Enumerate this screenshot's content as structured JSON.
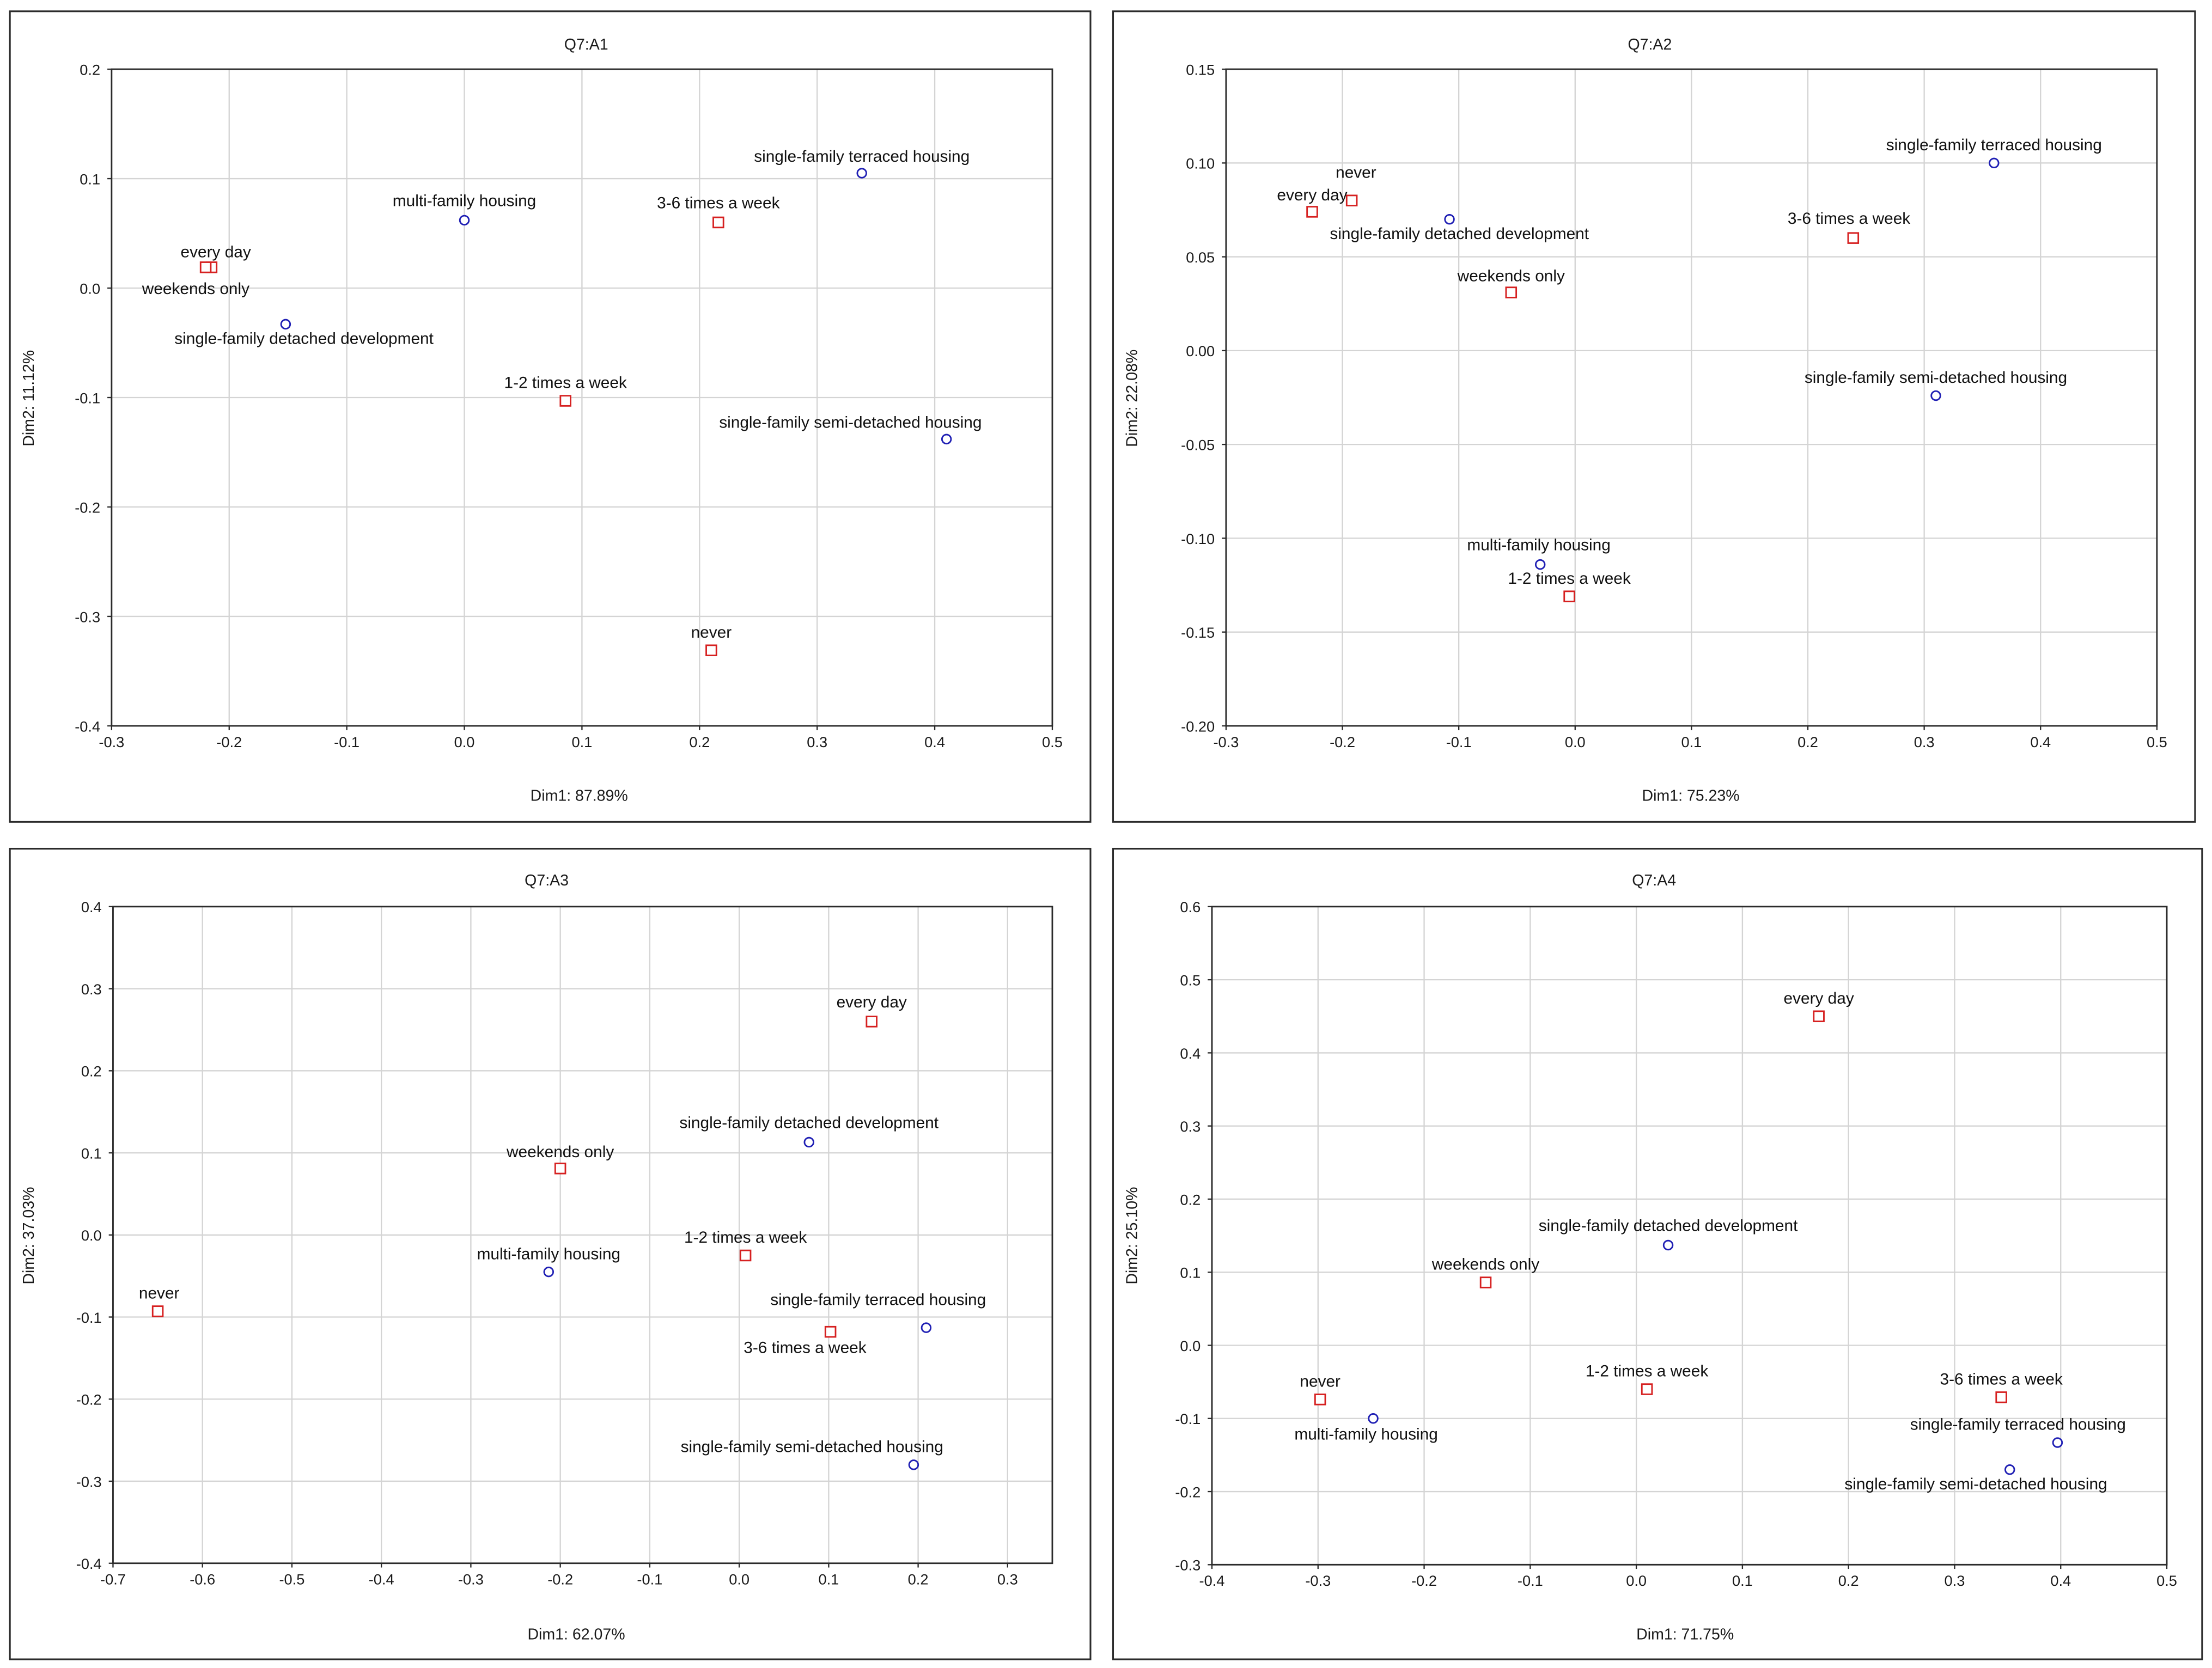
{
  "chart_data": [
    {
      "type": "scatter",
      "title": "Q7:A1",
      "xlabel": "Dim1: 87.89%",
      "ylabel": "Dim2: 11.12%",
      "xlim": [
        -0.3,
        0.5
      ],
      "ylim": [
        -0.4,
        0.2
      ],
      "x_ticks": [
        "-0.3",
        "-0.2",
        "-0.1",
        "0.0",
        "0.1",
        "0.2",
        "0.3",
        "0.4",
        "0.5"
      ],
      "y_ticks": [
        "-0.4",
        "-0.3",
        "-0.2",
        "-0.1",
        "0.0",
        "0.1",
        "0.2"
      ],
      "grid": true,
      "series": [
        {
          "marker": "circle",
          "color": "#1f1fb4",
          "points": [
            {
              "label": "multi-family housing",
              "x": 0.0,
              "y": 0.062
            },
            {
              "label": "single-family terraced housing",
              "x": 0.338,
              "y": 0.105
            },
            {
              "label": "single-family detached development",
              "x": -0.152,
              "y": -0.033
            },
            {
              "label": "single-family semi-detached housing",
              "x": 0.41,
              "y": -0.138
            }
          ]
        },
        {
          "marker": "square",
          "color": "#d62020",
          "points": [
            {
              "label": "every day",
              "x": -0.215,
              "y": 0.019
            },
            {
              "label": "weekends only",
              "x": -0.22,
              "y": 0.019
            },
            {
              "label": "3-6 times a week",
              "x": 0.216,
              "y": 0.06
            },
            {
              "label": "1-2 times a week",
              "x": 0.086,
              "y": -0.103
            },
            {
              "label": "never",
              "x": 0.21,
              "y": -0.331
            }
          ]
        }
      ]
    },
    {
      "type": "scatter",
      "title": "Q7:A2",
      "xlabel": "Dim1: 75.23%",
      "ylabel": "Dim2: 22.08%",
      "xlim": [
        -0.3,
        0.5
      ],
      "ylim": [
        -0.2,
        0.15
      ],
      "x_ticks": [
        "-0.3",
        "-0.2",
        "-0.1",
        "0.0",
        "0.1",
        "0.2",
        "0.3",
        "0.4",
        "0.5"
      ],
      "y_ticks": [
        "-0.20",
        "-0.15",
        "-0.10",
        "-0.05",
        "0.00",
        "0.05",
        "0.10",
        "0.15"
      ],
      "grid": true,
      "series": [
        {
          "marker": "circle",
          "color": "#1f1fb4",
          "points": [
            {
              "label": "single-family terraced housing",
              "x": 0.36,
              "y": 0.1
            },
            {
              "label": "single-family detached development",
              "x": -0.108,
              "y": 0.07
            },
            {
              "label": "single-family semi-detached housing",
              "x": 0.31,
              "y": -0.024
            },
            {
              "label": "multi-family housing",
              "x": -0.03,
              "y": -0.114
            }
          ]
        },
        {
          "marker": "square",
          "color": "#d62020",
          "points": [
            {
              "label": "never",
              "x": -0.192,
              "y": 0.08
            },
            {
              "label": "every day",
              "x": -0.226,
              "y": 0.074
            },
            {
              "label": "3-6 times a week",
              "x": 0.239,
              "y": 0.06
            },
            {
              "label": "weekends only",
              "x": -0.055,
              "y": 0.031
            },
            {
              "label": "1-2 times a week",
              "x": -0.005,
              "y": -0.131
            }
          ]
        }
      ]
    },
    {
      "type": "scatter",
      "title": "Q7:A3",
      "xlabel": "Dim1: 62.07%",
      "ylabel": "Dim2: 37.03%",
      "xlim": [
        -0.7,
        0.35
      ],
      "ylim": [
        -0.4,
        0.4
      ],
      "x_ticks": [
        "-0.7",
        "-0.6",
        "-0.5",
        "-0.4",
        "-0.3",
        "-0.2",
        "-0.1",
        "0.0",
        "0.1",
        "0.2",
        "0.3"
      ],
      "y_ticks": [
        "-0.4",
        "-0.3",
        "-0.2",
        "-0.1",
        "0.0",
        "0.1",
        "0.2",
        "0.3",
        "0.4"
      ],
      "grid": true,
      "series": [
        {
          "marker": "circle",
          "color": "#1f1fb4",
          "points": [
            {
              "label": "single-family detached development",
              "x": 0.078,
              "y": 0.113
            },
            {
              "label": "multi-family housing",
              "x": -0.213,
              "y": -0.045
            },
            {
              "label": "single-family terraced housing",
              "x": 0.209,
              "y": -0.113
            },
            {
              "label": "single-family semi-detached housing",
              "x": 0.195,
              "y": -0.28
            }
          ]
        },
        {
          "marker": "square",
          "color": "#d62020",
          "points": [
            {
              "label": "every day",
              "x": 0.148,
              "y": 0.26
            },
            {
              "label": "weekends only",
              "x": -0.2,
              "y": 0.081
            },
            {
              "label": "1-2 times a week",
              "x": 0.007,
              "y": -0.025
            },
            {
              "label": "never",
              "x": -0.65,
              "y": -0.093
            },
            {
              "label": "3-6 times a week",
              "x": 0.102,
              "y": -0.118
            }
          ]
        }
      ]
    },
    {
      "type": "scatter",
      "title": "Q7:A4",
      "xlabel": "Dim1: 71.75%",
      "ylabel": "Dim2: 25.10%",
      "xlim": [
        -0.4,
        0.5
      ],
      "ylim": [
        -0.3,
        0.6
      ],
      "x_ticks": [
        "-0.4",
        "-0.3",
        "-0.2",
        "-0.1",
        "0.0",
        "0.1",
        "0.2",
        "0.3",
        "0.4",
        "0.5"
      ],
      "y_ticks": [
        "-0.3",
        "-0.2",
        "-0.1",
        "0.0",
        "0.1",
        "0.2",
        "0.3",
        "0.4",
        "0.5",
        "0.6"
      ],
      "grid": true,
      "series": [
        {
          "marker": "circle",
          "color": "#1f1fb4",
          "points": [
            {
              "label": "single-family detached development",
              "x": 0.03,
              "y": 0.137
            },
            {
              "label": "multi-family housing",
              "x": -0.248,
              "y": -0.1
            },
            {
              "label": "single-family terraced housing",
              "x": 0.397,
              "y": -0.133
            },
            {
              "label": "single-family semi-detached housing",
              "x": 0.352,
              "y": -0.17
            }
          ]
        },
        {
          "marker": "square",
          "color": "#d62020",
          "points": [
            {
              "label": "every day",
              "x": 0.172,
              "y": 0.45
            },
            {
              "label": "weekends only",
              "x": -0.142,
              "y": 0.086
            },
            {
              "label": "1-2 times a week",
              "x": 0.01,
              "y": -0.06
            },
            {
              "label": "never",
              "x": -0.298,
              "y": -0.074
            },
            {
              "label": "3-6 times a week",
              "x": 0.344,
              "y": -0.071
            }
          ]
        }
      ]
    }
  ]
}
